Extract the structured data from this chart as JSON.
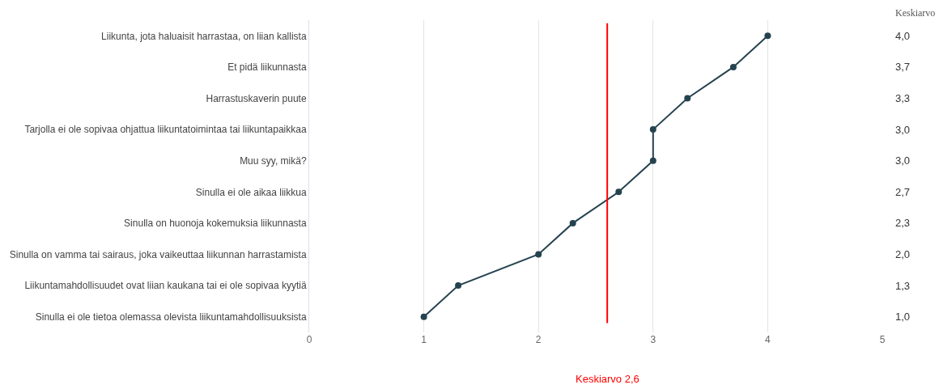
{
  "chart_data": {
    "type": "line",
    "orientation": "horizontal",
    "categories": [
      "Liikunta, jota haluaisit harrastaa, on liian kallista",
      "Et pidä liikunnasta",
      "Harrastuskaverin puute",
      "Tarjolla ei ole sopivaa ohjattua liikuntatoimintaa tai liikuntapaikkaa",
      "Muu syy, mikä?",
      "Sinulla ei ole aikaa liikkua",
      "Sinulla on huonoja kokemuksia liikunnasta",
      "Sinulla on vamma tai sairaus, joka vaikeuttaa liikunnan harrastamista",
      "Liikuntamahdollisuudet ovat liian kaukana tai ei ole sopivaa kyytiä",
      "Sinulla ei ole tietoa olemassa olevista liikuntamahdollisuuksista"
    ],
    "series": [
      {
        "color": "#25424f",
        "values": [
          4.0,
          3.7,
          3.3,
          3.0,
          3.0,
          2.7,
          2.3,
          2.0,
          1.3,
          1.0
        ],
        "value_labels": [
          "4,0",
          "3,7",
          "3,3",
          "3,0",
          "3,0",
          "2,7",
          "2,3",
          "2,0",
          "1,3",
          "1,0"
        ]
      }
    ],
    "y2label": "Keskiarvo",
    "xlim": [
      0,
      5
    ],
    "xticks": [
      0,
      1,
      2,
      3,
      4,
      5
    ],
    "ref_lines": [
      {
        "axis": "x",
        "value": 2.6,
        "label": "Keskiarvo 2,6",
        "color": "#ff0000"
      }
    ],
    "grid": "x",
    "legend": "bottom",
    "marker": "circle",
    "line_style": "solid"
  }
}
